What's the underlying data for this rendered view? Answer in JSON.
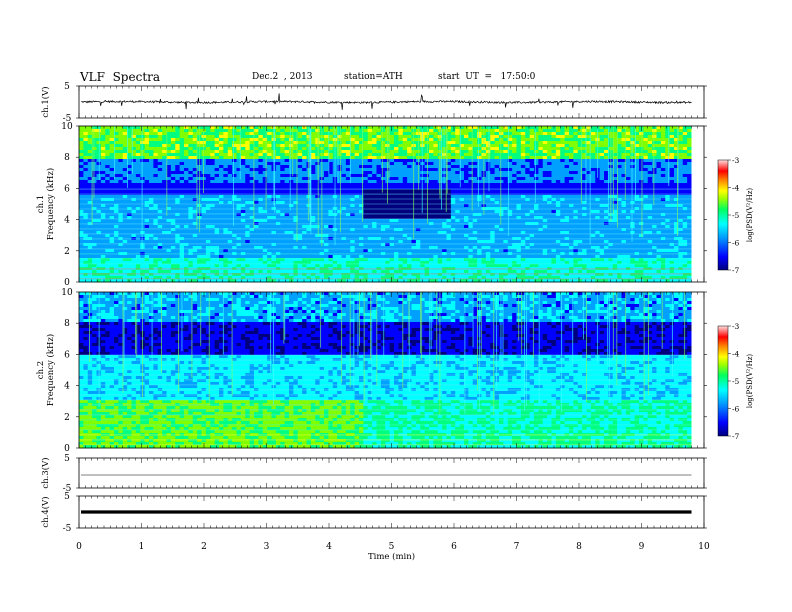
{
  "header": {
    "title": "VLF  Spectra",
    "date": "Dec.2  , 2013",
    "station": "station=ATH",
    "start": "start  UT  =   17:50:0"
  },
  "chart_data": [
    {
      "type": "line",
      "ylabel": "ch.1(V)",
      "ylim": [
        -5,
        5
      ],
      "yticks": [
        5,
        -5
      ],
      "description_of_values": "noisy waveform centered near 0 V with spikes to about ±2 V",
      "baseline": 0
    },
    {
      "type": "heatmap",
      "ylabel": "ch.1\nFrequency (kHz)",
      "ylabel_lines": [
        "ch.1",
        "Frequency (kHz)"
      ],
      "ylim": [
        0,
        10
      ],
      "yticks": [
        0,
        2,
        4,
        6,
        8,
        10
      ],
      "colorbar": {
        "label": "log(PSD(V²/Hz)",
        "ticks": [
          -3,
          -4,
          -5,
          -6,
          -7
        ],
        "range": [
          -7,
          -3
        ]
      }
    },
    {
      "type": "heatmap",
      "ylabel": "ch.2\nFrequency (kHz)",
      "ylabel_lines": [
        "ch.2",
        "Frequency (kHz)"
      ],
      "ylim": [
        0,
        10
      ],
      "yticks": [
        0,
        2,
        4,
        6,
        8,
        10
      ],
      "colorbar": {
        "label": "log(PSD(V²/Hz)",
        "ticks": [
          -3,
          -4,
          -5,
          -6,
          -7
        ],
        "range": [
          -7,
          -3
        ]
      }
    },
    {
      "type": "line",
      "ylabel": "ch.3(V)",
      "ylim": [
        -5,
        5
      ],
      "yticks": [
        5,
        -5
      ],
      "baseline": 0
    },
    {
      "type": "line",
      "ylabel": "ch.4(V)",
      "ylim": [
        -5,
        5
      ],
      "yticks": [
        5,
        -5
      ],
      "baseline": 0
    }
  ],
  "xaxis": {
    "label": "Time  (min)",
    "xlim": [
      0,
      10
    ],
    "ticks": [
      0,
      1,
      2,
      3,
      4,
      5,
      6,
      7,
      8,
      9,
      10
    ],
    "data_end": 9.8
  },
  "colors": {
    "colormap": [
      "#00007f",
      "#0000ff",
      "#00a0ff",
      "#00ffff",
      "#00ff80",
      "#80ff00",
      "#ffff00",
      "#ff8000",
      "#ff0000",
      "#ffffff"
    ]
  }
}
